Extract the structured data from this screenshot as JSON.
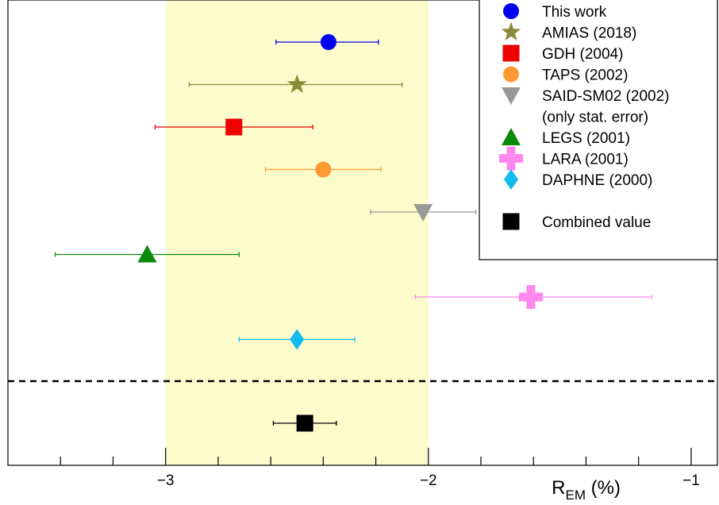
{
  "chart_data": {
    "type": "scatter",
    "orientation": "horizontal-error-bars",
    "xlabel": {
      "main": "R",
      "sub": "EM",
      "unit": " (%)"
    },
    "ylabel": "",
    "xlim": [
      -3.6,
      -0.9
    ],
    "x_ticks": [
      -3,
      -2,
      -1
    ],
    "x_tick_labels": [
      "−3",
      "−2",
      "−1"
    ],
    "highlight_band": {
      "x0": -3.0,
      "x1": -2.0,
      "color": "#fbfbcc"
    },
    "separator_line": "dashed",
    "legend_position": "top-right",
    "series": [
      {
        "name": "This work",
        "x": -2.38,
        "err_low": -2.58,
        "err_high": -2.19,
        "marker": "circle",
        "color": "#0000ee"
      },
      {
        "name": "AMIAS (2018)",
        "x": -2.5,
        "err_low": -2.91,
        "err_high": -2.1,
        "marker": "star",
        "color": "#8a8a38"
      },
      {
        "name": "GDH (2004)",
        "x": -2.74,
        "err_low": -3.04,
        "err_high": -2.44,
        "marker": "square",
        "color": "#ee0000"
      },
      {
        "name": "TAPS (2002)",
        "x": -2.4,
        "err_low": -2.62,
        "err_high": -2.18,
        "marker": "circle",
        "color": "#ff9933"
      },
      {
        "name": "SAID-SM02 (2002)",
        "x": -2.02,
        "err_low": -2.22,
        "err_high": -1.82,
        "marker": "triangle-down",
        "color": "#999999",
        "note": "(only stat. error)"
      },
      {
        "name": "LEGS (2001)",
        "x": -3.07,
        "err_low": -3.42,
        "err_high": -2.72,
        "marker": "triangle-up",
        "color": "#0a8a0a"
      },
      {
        "name": "LARA (2001)",
        "x": -1.61,
        "err_low": -2.05,
        "err_high": -1.15,
        "marker": "cross",
        "color": "#ff88ee"
      },
      {
        "name": "DAPHNE (2000)",
        "x": -2.5,
        "err_low": -2.72,
        "err_high": -2.28,
        "marker": "diamond",
        "color": "#11bbee"
      }
    ],
    "combined": {
      "name": "Combined value",
      "x": -2.47,
      "err_low": -2.59,
      "err_high": -2.35,
      "marker": "square",
      "color": "#000000"
    }
  }
}
